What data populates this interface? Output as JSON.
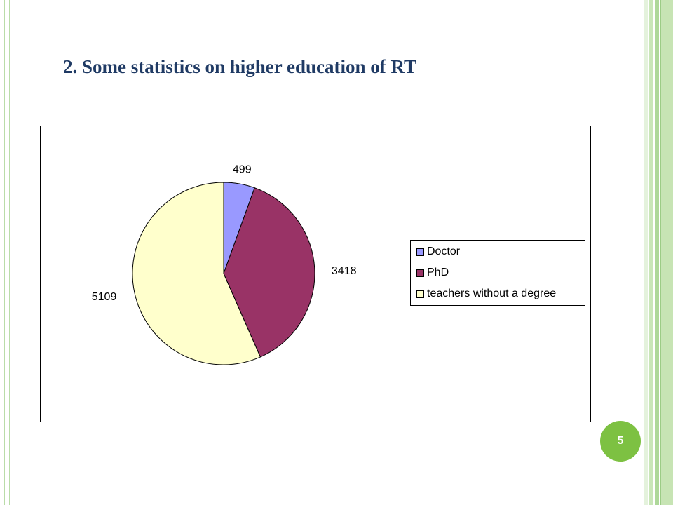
{
  "slide": {
    "title": "2. Some statistics on higher education of RT",
    "page_number": "5"
  },
  "colors": {
    "title": "#1f3a64",
    "accent_green": "#7dc142"
  },
  "chart_data": {
    "type": "pie",
    "labels": [
      "Doctor",
      "PhD",
      "teachers without a degree"
    ],
    "values": [
      499,
      3418,
      5109
    ],
    "colors": [
      "#9999ff",
      "#993366",
      "#ffffcc"
    ],
    "legend_position": "right"
  }
}
